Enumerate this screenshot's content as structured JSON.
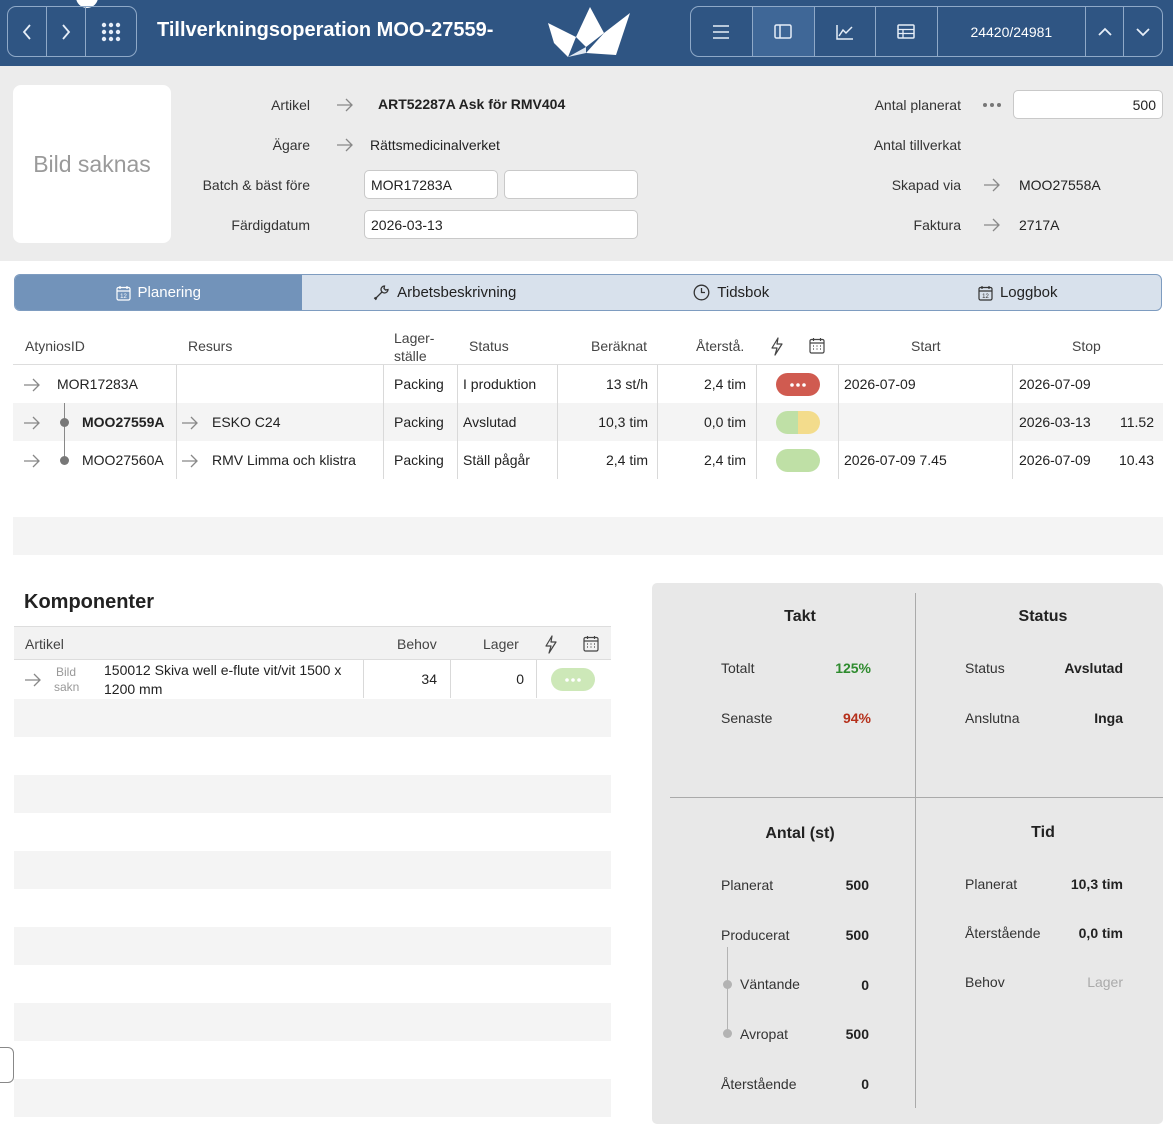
{
  "header": {
    "title": "Tillverkningsoperation MOO-27559-",
    "counter": "24420/24981",
    "brand_color": "#2f5583"
  },
  "info": {
    "photo_placeholder": "Bild saknas",
    "artikel_label": "Artikel",
    "artikel_value": "ART52287A Ask för RMV404",
    "agare_label": "Ägare",
    "agare_value": "Rättsmedicinalverket",
    "batch_label": "Batch & bäst före",
    "batch_value": "MOR17283A",
    "bast_fore_value": "",
    "fardigdatum_label": "Färdigdatum",
    "fardigdatum_value": "2026-03-13",
    "antal_planerat_label": "Antal planerat",
    "antal_planerat_value": "500",
    "antal_tillverkat_label": "Antal tillverkat",
    "skapad_via_label": "Skapad via",
    "skapad_via_value": "MOO27558A",
    "faktura_label": "Faktura",
    "faktura_value": "2717A"
  },
  "tabs": [
    {
      "label": "Planering",
      "icon": "calendar-icon",
      "active": true
    },
    {
      "label": "Arbetsbeskrivning",
      "icon": "wrench-icon",
      "active": false
    },
    {
      "label": "Tidsbok",
      "icon": "clock-icon",
      "active": false
    },
    {
      "label": "Loggbok",
      "icon": "calendar-icon",
      "active": false
    }
  ],
  "ops_table": {
    "columns": {
      "id": "AtyniosID",
      "resurs": "Resurs",
      "lager_1": "Lager-",
      "lager_2": "ställe",
      "status": "Status",
      "beraknat": "Beräknat",
      "atersta": "Återstå.",
      "start": "Start",
      "stop": "Stop"
    },
    "rows": [
      {
        "id": "MOR17283A",
        "resurs": "",
        "lager": "Packing",
        "status": "I produktion",
        "beraknat": "13 st/h",
        "atersta": "2,4 tim",
        "start": "2026-07-09",
        "stop_date": "2026-07-09",
        "stop_time": "",
        "pill": "red"
      },
      {
        "id": "MOO27559A",
        "resurs": "ESKO C24",
        "lager": "Packing",
        "status": "Avslutad",
        "beraknat": "10,3 tim",
        "atersta": "0,0 tim",
        "start": "",
        "stop_date": "2026-03-13",
        "stop_time": "11.52",
        "pill": "green-yellow"
      },
      {
        "id": "MOO27560A",
        "resurs": "RMV Limma och klistra",
        "lager": "Packing",
        "status": "Ställ pågår",
        "beraknat": "2,4 tim",
        "atersta": "2,4 tim",
        "start": "2026-07-09 7.45",
        "stop_date": "2026-07-09",
        "stop_time": "10.43",
        "pill": "green"
      }
    ]
  },
  "komponenter": {
    "title": "Komponenter",
    "columns": {
      "artikel": "Artikel",
      "behov": "Behov",
      "lager": "Lager"
    },
    "rows": [
      {
        "thumb_1": "Bild",
        "thumb_2": "sakn",
        "artikel_1": "150012 Skiva well e-flute vit/vit 1500 x",
        "artikel_2": "1200 mm",
        "behov": "34",
        "lager": "0"
      }
    ]
  },
  "stats": {
    "takt": {
      "title": "Takt",
      "totalt_label": "Totalt",
      "totalt_value": "125%",
      "senaste_label": "Senaste",
      "senaste_value": "94%"
    },
    "status": {
      "title": "Status",
      "status_label": "Status",
      "status_value": "Avslutad",
      "anslutna_label": "Anslutna",
      "anslutna_value": "Inga"
    },
    "antal": {
      "title": "Antal (st)",
      "planerat_label": "Planerat",
      "planerat_value": "500",
      "producerat_label": "Producerat",
      "producerat_value": "500",
      "vantande_label": "Väntande",
      "vantande_value": "0",
      "avropat_label": "Avropat",
      "avropat_value": "500",
      "aterstaende_label": "Återstående",
      "aterstaende_value": "0"
    },
    "tid": {
      "title": "Tid",
      "planerat_label": "Planerat",
      "planerat_value": "10,3 tim",
      "aterstaende_label": "Återstående",
      "aterstaende_value": "0,0 tim",
      "behov_label": "Behov",
      "behov_value": "Lager"
    },
    "colors": {
      "good": "#2e8b2e",
      "bad": "#b5301b"
    }
  }
}
